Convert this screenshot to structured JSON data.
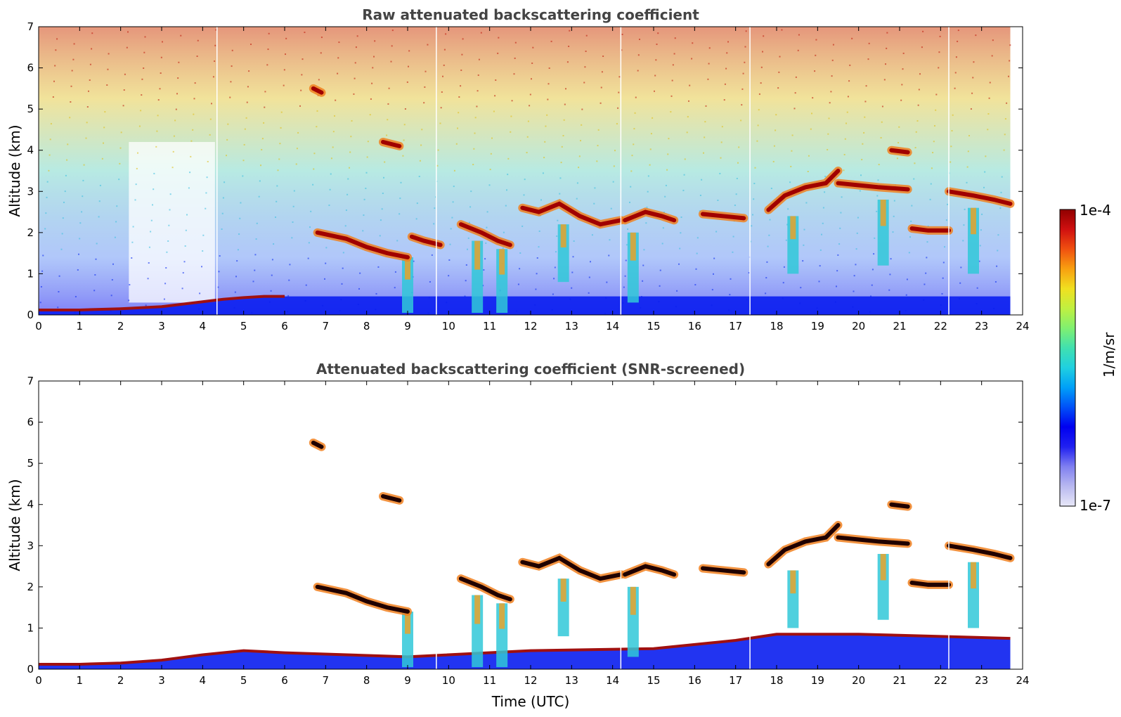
{
  "chart_data": [
    {
      "type": "heatmap",
      "title": "Raw attenuated backscattering coefficient",
      "xlabel": "",
      "ylabel": "Altitude (km)",
      "xlim": [
        0,
        24
      ],
      "ylim": [
        0,
        7
      ],
      "x_ticks": [
        "0",
        "1",
        "2",
        "3",
        "4",
        "5",
        "6",
        "7",
        "8",
        "9",
        "10",
        "11",
        "12",
        "13",
        "14",
        "15",
        "16",
        "17",
        "18",
        "19",
        "20",
        "21",
        "22",
        "23",
        "24"
      ],
      "y_ticks": [
        "0",
        "1",
        "2",
        "3",
        "4",
        "5",
        "6",
        "7"
      ],
      "data_end_time": 23.7,
      "background_noise": "high",
      "gaps": [
        4.35,
        9.7,
        14.2,
        17.35,
        22.2
      ],
      "boundary_layer": [
        [
          0,
          0.12
        ],
        [
          1,
          0.12
        ],
        [
          2,
          0.15
        ],
        [
          3,
          0.2
        ],
        [
          4,
          0.32
        ],
        [
          4.5,
          0.38
        ],
        [
          5,
          0.42
        ],
        [
          5.5,
          0.45
        ],
        [
          6,
          0.45
        ]
      ],
      "cloud_features": [
        {
          "name": "cloud-layer-7-9h",
          "points": [
            [
              6.8,
              2.0
            ],
            [
              7.5,
              1.85
            ],
            [
              8,
              1.65
            ],
            [
              8.5,
              1.5
            ],
            [
              9,
              1.4
            ]
          ],
          "level": "high"
        },
        {
          "name": "cloud-9-10h",
          "points": [
            [
              9.1,
              1.9
            ],
            [
              9.4,
              1.8
            ],
            [
              9.8,
              1.7
            ]
          ],
          "level": "high"
        },
        {
          "name": "cloud-10-12h",
          "points": [
            [
              10.3,
              2.2
            ],
            [
              10.8,
              2.0
            ],
            [
              11.2,
              1.8
            ],
            [
              11.5,
              1.7
            ]
          ],
          "level": "high"
        },
        {
          "name": "cloud-12-14h",
          "points": [
            [
              11.8,
              2.6
            ],
            [
              12.2,
              2.5
            ],
            [
              12.7,
              2.7
            ],
            [
              13.2,
              2.4
            ],
            [
              13.7,
              2.2
            ],
            [
              14.2,
              2.3
            ]
          ],
          "level": "high"
        },
        {
          "name": "cloud-14-16h",
          "points": [
            [
              14.3,
              2.3
            ],
            [
              14.8,
              2.5
            ],
            [
              15.2,
              2.4
            ],
            [
              15.5,
              2.3
            ]
          ],
          "level": "high"
        },
        {
          "name": "cloud-16-17h",
          "points": [
            [
              16.2,
              2.45
            ],
            [
              16.7,
              2.4
            ],
            [
              17.2,
              2.35
            ]
          ],
          "level": "high"
        },
        {
          "name": "cloud-17-20h",
          "points": [
            [
              17.8,
              2.55
            ],
            [
              18.2,
              2.9
            ],
            [
              18.7,
              3.1
            ],
            [
              19.2,
              3.2
            ],
            [
              19.5,
              3.5
            ]
          ],
          "level": "high"
        },
        {
          "name": "cloud-20-21h",
          "points": [
            [
              19.5,
              3.2
            ],
            [
              20,
              3.15
            ],
            [
              20.5,
              3.1
            ],
            [
              21.2,
              3.05
            ]
          ],
          "level": "high"
        },
        {
          "name": "cloud-21h-4km",
          "points": [
            [
              20.8,
              4.0
            ],
            [
              21.2,
              3.95
            ]
          ],
          "level": "high"
        },
        {
          "name": "cloud-21-22h",
          "points": [
            [
              21.3,
              2.1
            ],
            [
              21.7,
              2.05
            ],
            [
              22.2,
              2.05
            ]
          ],
          "level": "high"
        },
        {
          "name": "cloud-22-24h",
          "points": [
            [
              22.2,
              3.0
            ],
            [
              22.8,
              2.9
            ],
            [
              23.3,
              2.8
            ],
            [
              23.7,
              2.7
            ]
          ],
          "level": "high"
        },
        {
          "name": "cloud-8.5h-4km",
          "points": [
            [
              8.4,
              4.2
            ],
            [
              8.8,
              4.1
            ]
          ],
          "level": "high"
        },
        {
          "name": "cloud-7-5.5km",
          "points": [
            [
              6.7,
              5.5
            ],
            [
              6.9,
              5.4
            ]
          ],
          "level": "high"
        }
      ],
      "fallstreaks": [
        {
          "start": [
            9.0,
            1.4
          ],
          "end": [
            9.0,
            0.05
          ]
        },
        {
          "start": [
            10.7,
            1.8
          ],
          "end": [
            10.7,
            0.05
          ]
        },
        {
          "start": [
            11.3,
            1.6
          ],
          "end": [
            11.3,
            0.05
          ]
        },
        {
          "start": [
            12.8,
            2.2
          ],
          "end": [
            12.8,
            0.8
          ]
        },
        {
          "start": [
            14.5,
            2.0
          ],
          "end": [
            14.5,
            0.3
          ]
        },
        {
          "start": [
            18.4,
            2.4
          ],
          "end": [
            18.4,
            1.0
          ]
        },
        {
          "start": [
            20.6,
            2.8
          ],
          "end": [
            20.6,
            1.2
          ]
        },
        {
          "start": [
            22.8,
            2.6
          ],
          "end": [
            22.8,
            1.0
          ]
        }
      ]
    },
    {
      "type": "heatmap",
      "title": "Attenuated backscattering coefficient (SNR-screened)",
      "xlabel": "Time (UTC)",
      "ylabel": "Altitude (km)",
      "xlim": [
        0,
        24
      ],
      "ylim": [
        0,
        7
      ],
      "x_ticks": [
        "0",
        "1",
        "2",
        "3",
        "4",
        "5",
        "6",
        "7",
        "8",
        "9",
        "10",
        "11",
        "12",
        "13",
        "14",
        "15",
        "16",
        "17",
        "18",
        "19",
        "20",
        "21",
        "22",
        "23",
        "24"
      ],
      "y_ticks": [
        "0",
        "1",
        "2",
        "3",
        "4",
        "5",
        "6",
        "7"
      ],
      "data_end_time": 23.7,
      "background_noise": "none",
      "gaps": [
        9.7,
        14.2,
        17.35,
        22.2
      ],
      "boundary_layer": [
        [
          0,
          0.12
        ],
        [
          1,
          0.12
        ],
        [
          2,
          0.15
        ],
        [
          3,
          0.22
        ],
        [
          4,
          0.35
        ],
        [
          5,
          0.45
        ],
        [
          6,
          0.4
        ],
        [
          9,
          0.3
        ],
        [
          12,
          0.45
        ],
        [
          15,
          0.5
        ],
        [
          17,
          0.7
        ],
        [
          18,
          0.85
        ],
        [
          20,
          0.85
        ],
        [
          23.7,
          0.75
        ]
      ],
      "cloud_features": [
        {
          "name": "cloud-layer-7-9h",
          "points": [
            [
              6.8,
              2.0
            ],
            [
              7.5,
              1.85
            ],
            [
              8,
              1.65
            ],
            [
              8.5,
              1.5
            ],
            [
              9,
              1.4
            ]
          ],
          "level": "high"
        },
        {
          "name": "cloud-10-12h",
          "points": [
            [
              10.3,
              2.2
            ],
            [
              10.8,
              2.0
            ],
            [
              11.2,
              1.8
            ],
            [
              11.5,
              1.7
            ]
          ],
          "level": "high"
        },
        {
          "name": "cloud-12-14h",
          "points": [
            [
              11.8,
              2.6
            ],
            [
              12.2,
              2.5
            ],
            [
              12.7,
              2.7
            ],
            [
              13.2,
              2.4
            ],
            [
              13.7,
              2.2
            ],
            [
              14.2,
              2.3
            ]
          ],
          "level": "high"
        },
        {
          "name": "cloud-14-16h",
          "points": [
            [
              14.3,
              2.3
            ],
            [
              14.8,
              2.5
            ],
            [
              15.2,
              2.4
            ],
            [
              15.5,
              2.3
            ]
          ],
          "level": "high"
        },
        {
          "name": "cloud-16-17h",
          "points": [
            [
              16.2,
              2.45
            ],
            [
              16.7,
              2.4
            ],
            [
              17.2,
              2.35
            ]
          ],
          "level": "high"
        },
        {
          "name": "cloud-17-20h",
          "points": [
            [
              17.8,
              2.55
            ],
            [
              18.2,
              2.9
            ],
            [
              18.7,
              3.1
            ],
            [
              19.2,
              3.2
            ],
            [
              19.5,
              3.5
            ]
          ],
          "level": "high"
        },
        {
          "name": "cloud-20-21h",
          "points": [
            [
              19.5,
              3.2
            ],
            [
              20,
              3.15
            ],
            [
              20.5,
              3.1
            ],
            [
              21.2,
              3.05
            ]
          ],
          "level": "high"
        },
        {
          "name": "cloud-21h-4km",
          "points": [
            [
              20.8,
              4.0
            ],
            [
              21.2,
              3.95
            ]
          ],
          "level": "high"
        },
        {
          "name": "cloud-21-22h",
          "points": [
            [
              21.3,
              2.1
            ],
            [
              21.7,
              2.05
            ],
            [
              22.2,
              2.05
            ]
          ],
          "level": "high"
        },
        {
          "name": "cloud-22-24h",
          "points": [
            [
              22.2,
              3.0
            ],
            [
              22.8,
              2.9
            ],
            [
              23.3,
              2.8
            ],
            [
              23.7,
              2.7
            ]
          ],
          "level": "high"
        },
        {
          "name": "cloud-8.5h-4km",
          "points": [
            [
              8.4,
              4.2
            ],
            [
              8.8,
              4.1
            ]
          ],
          "level": "high"
        },
        {
          "name": "cloud-7-5.5km",
          "points": [
            [
              6.7,
              5.5
            ],
            [
              6.9,
              5.4
            ]
          ],
          "level": "high"
        }
      ],
      "fallstreaks": [
        {
          "start": [
            9.0,
            1.4
          ],
          "end": [
            9.0,
            0.05
          ]
        },
        {
          "start": [
            10.7,
            1.8
          ],
          "end": [
            10.7,
            0.05
          ]
        },
        {
          "start": [
            11.3,
            1.6
          ],
          "end": [
            11.3,
            0.05
          ]
        },
        {
          "start": [
            12.8,
            2.2
          ],
          "end": [
            12.8,
            0.8
          ]
        },
        {
          "start": [
            14.5,
            2.0
          ],
          "end": [
            14.5,
            0.3
          ]
        },
        {
          "start": [
            18.4,
            2.4
          ],
          "end": [
            18.4,
            1.0
          ]
        },
        {
          "start": [
            20.6,
            2.8
          ],
          "end": [
            20.6,
            1.2
          ]
        },
        {
          "start": [
            22.8,
            2.6
          ],
          "end": [
            22.8,
            1.0
          ]
        }
      ]
    }
  ],
  "colorbar": {
    "label": "1/m/sr",
    "max_label": "1e-4",
    "min_label": "1e-7",
    "colors": [
      "#e8e8f8",
      "#b8b8f0",
      "#8080f0",
      "#2020f0",
      "#0000f0",
      "#0050f8",
      "#00a0f8",
      "#20d0e0",
      "#40e0b0",
      "#80f070",
      "#c0f040",
      "#f0e020",
      "#f8a010",
      "#f05010",
      "#d01010",
      "#900000"
    ]
  }
}
